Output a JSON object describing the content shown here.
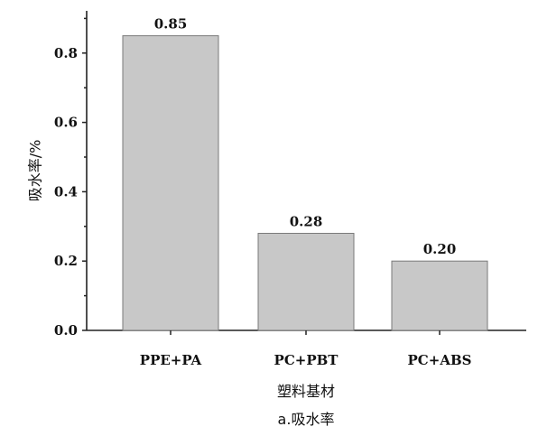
{
  "chart_data": {
    "type": "bar",
    "categories": [
      "PPE+PA",
      "PC+PBT",
      "PC+ABS"
    ],
    "values": [
      0.85,
      0.28,
      0.2
    ],
    "data_labels": [
      "0.85",
      "0.28",
      "0.20"
    ],
    "xlabel": "塑料基材",
    "ylabel": "吸水率/%",
    "caption": "a.吸水率",
    "ylim": [
      0,
      0.9
    ],
    "y_ticks": [
      0.0,
      0.2,
      0.4,
      0.6,
      0.8
    ],
    "y_tick_labels": [
      "0.0",
      "0.2",
      "0.4",
      "0.6",
      "0.8"
    ],
    "grid": false,
    "bar_color": "#c8c8c8",
    "bar_edge_color": "#7a7a7a"
  }
}
